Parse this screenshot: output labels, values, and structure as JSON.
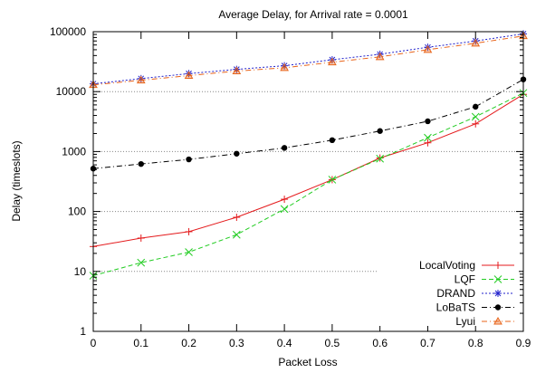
{
  "chart_data": {
    "type": "line",
    "title": "Average Delay, for Arrival rate = 0.0001",
    "xlabel": "Packet Loss",
    "ylabel": "Delay (timeslots)",
    "x": [
      0,
      0.1,
      0.2,
      0.3,
      0.4,
      0.5,
      0.6,
      0.7,
      0.8,
      0.9
    ],
    "xticks": [
      "0",
      "0.1",
      "0.2",
      "0.3",
      "0.4",
      "0.5",
      "0.6",
      "0.7",
      "0.8",
      "0.9"
    ],
    "xlim": [
      0,
      0.9
    ],
    "ylim": [
      1,
      100000
    ],
    "yscale": "log",
    "yticks": [
      1,
      10,
      100,
      1000,
      10000,
      100000
    ],
    "ytick_labels": [
      "1",
      "10",
      "100",
      "1000",
      "10000",
      "100000"
    ],
    "grid": "horizontal dotted",
    "legend_position": "bottom-right",
    "series": [
      {
        "name": "LocalVoting",
        "color": "#e41a1c",
        "marker": "plus",
        "dash": "solid",
        "values": [
          26,
          36,
          46,
          80,
          160,
          340,
          780,
          1400,
          2900,
          9000
        ]
      },
      {
        "name": "LQF",
        "color": "#22cc22",
        "marker": "x",
        "dash": "dashed",
        "values": [
          8.5,
          14,
          21,
          41,
          110,
          340,
          760,
          1700,
          3800,
          9500
        ]
      },
      {
        "name": "DRAND",
        "color": "#2222cc",
        "marker": "asterisk",
        "dash": "dotted",
        "values": [
          13500,
          16500,
          20000,
          23500,
          27000,
          34000,
          42000,
          55000,
          70000,
          92000
        ]
      },
      {
        "name": "LoBaTS",
        "color": "#000000",
        "marker": "dot",
        "dash": "dashdot",
        "values": [
          520,
          620,
          740,
          920,
          1150,
          1550,
          2200,
          3200,
          5600,
          16000
        ]
      },
      {
        "name": "Lyui",
        "color": "#e8641a",
        "marker": "triangle",
        "dash": "dashdot",
        "values": [
          13000,
          15500,
          18500,
          22000,
          25000,
          31000,
          38000,
          50000,
          64000,
          85000
        ]
      }
    ]
  }
}
